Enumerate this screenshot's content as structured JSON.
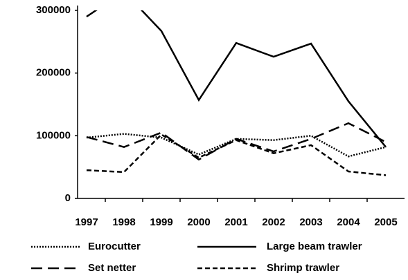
{
  "chart_data": {
    "type": "line",
    "categories": [
      "1997",
      "1998",
      "1999",
      "2000",
      "2001",
      "2002",
      "2003",
      "2004",
      "2005"
    ],
    "series": [
      {
        "name": "Eurocutter",
        "color": "#000000",
        "dash": "dotted",
        "values": [
          97000,
          103000,
          97000,
          70000,
          95000,
          93000,
          100000,
          67000,
          82000
        ]
      },
      {
        "name": "Large beam trawler",
        "color": "#000000",
        "dash": "solid",
        "values": [
          290000,
          330000,
          267000,
          157000,
          248000,
          226000,
          247000,
          155000,
          82000
        ]
      },
      {
        "name": "Set netter",
        "color": "#000000",
        "dash": "long-dash",
        "values": [
          98000,
          82000,
          105000,
          62000,
          95000,
          75000,
          95000,
          120000,
          90000
        ]
      },
      {
        "name": "Shrimp trawler",
        "color": "#000000",
        "dash": "dashed",
        "values": [
          45000,
          42000,
          102000,
          65000,
          93000,
          72000,
          85000,
          43000,
          37000
        ]
      }
    ],
    "ylim": [
      0,
      300000
    ],
    "yticks": [
      0,
      100000,
      200000,
      300000
    ],
    "grid": false,
    "legend": "bottom"
  }
}
